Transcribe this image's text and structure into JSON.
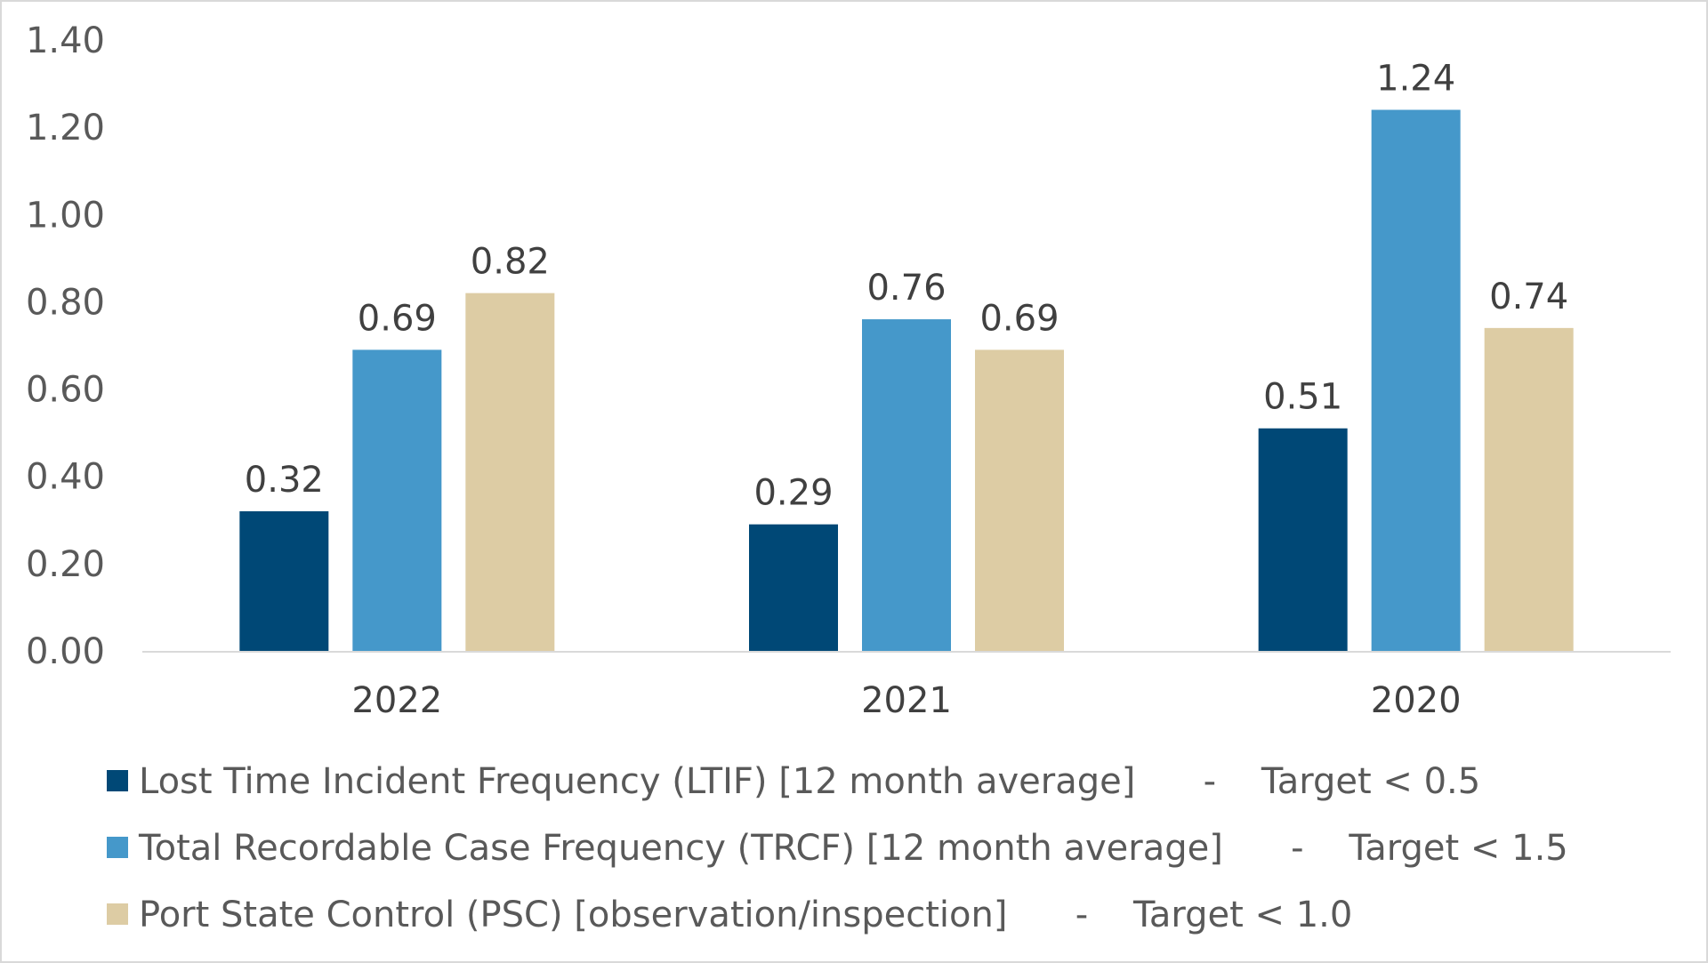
{
  "chart_data": {
    "type": "bar",
    "title": "",
    "xlabel": "",
    "ylabel": "",
    "categories": [
      "2022",
      "2021",
      "2020"
    ],
    "ylim": [
      0,
      1.4
    ],
    "yticks": [
      "0.00",
      "0.20",
      "0.40",
      "0.60",
      "0.80",
      "1.00",
      "1.20",
      "1.40"
    ],
    "grid": false,
    "legend_position": "bottom",
    "series": [
      {
        "name": "Lost Time Incident Frequency (LTIF) [12 month average]      -    Target < 0.5",
        "values": [
          0.32,
          0.29,
          0.51
        ],
        "labels": [
          "0.32",
          "0.29",
          "0.51"
        ],
        "color": "#004876"
      },
      {
        "name": "Total Recordable Case Frequency (TRCF) [12 month average]      -    Target < 1.5",
        "values": [
          0.69,
          0.76,
          1.24
        ],
        "labels": [
          "0.69",
          "0.76",
          "1.24"
        ],
        "color": "#4598ca"
      },
      {
        "name": "Port State Control (PSC) [observation/inspection]      -    Target < 1.0",
        "values": [
          0.82,
          0.69,
          0.74
        ],
        "labels": [
          "0.82",
          "0.69",
          "0.74"
        ],
        "color": "#ddcca4"
      }
    ]
  }
}
